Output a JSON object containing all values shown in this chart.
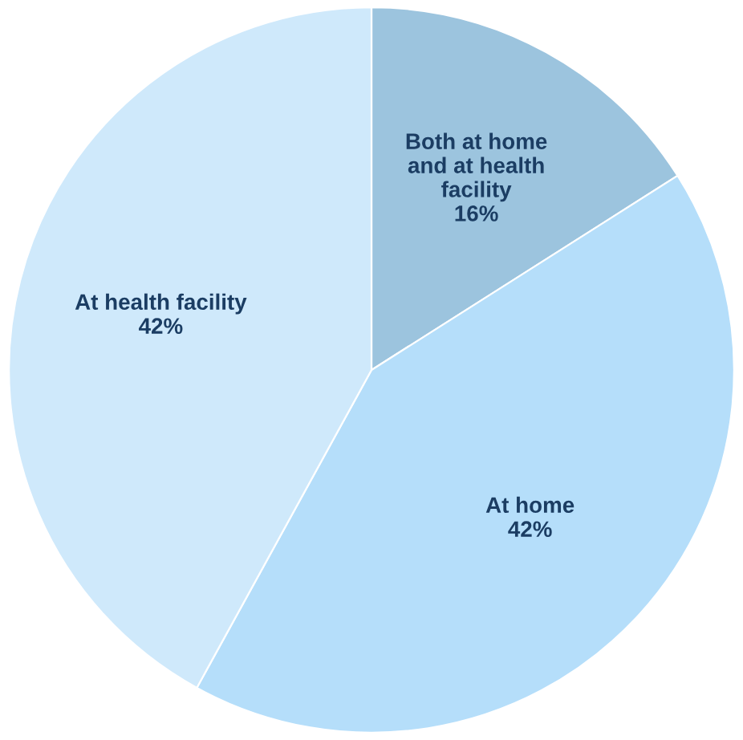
{
  "chart_data": {
    "type": "pie",
    "categories": [
      "Both at home\nand at health\nfacility",
      "At home",
      "At health facility"
    ],
    "values": [
      16,
      42,
      42
    ],
    "colors": [
      "#9cc4de",
      "#b5defa",
      "#cfe9fb"
    ],
    "value_labels": [
      "16%",
      "42%",
      "42%"
    ]
  }
}
